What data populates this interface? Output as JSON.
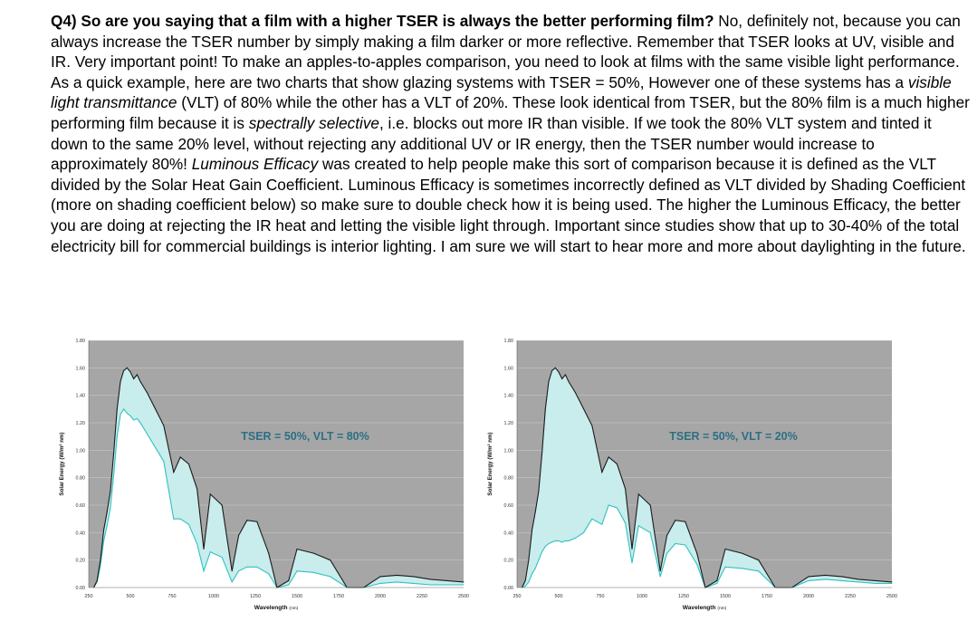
{
  "document": {
    "question": "Q4) So are you saying that a film with a higher TSER is always the better performing film?",
    "s1": "  No, definitely not, because you can always increase the TSER number by simply making a film darker or more reflective.  Remember that TSER looks at UV, visible and IR.  Very important point!  To make an apples-to-apples comparison, you need to look at films with the same visible light performance.  As a quick example, here are two charts that show glazing systems with TSER = 50%, However one of these systems has a ",
    "term_vlt": "visible light transmittance",
    "s2": " (VLT) of 80% while the other has a VLT of 20%.  These look identical from TSER, but the 80% film is a much higher performing film because it is ",
    "term_selective": "spectrally selective",
    "s3": ", i.e. blocks out more IR than visible.  If we took the 80% VLT system and tinted it down to the same 20% level, without rejecting any additional UV or IR energy, then the TSER number would increase to approximately 80%!  ",
    "term_efficacy": "Luminous Efficacy",
    "s4": " was created to help people make this sort of comparison because it is defined as the VLT divided by the Solar Heat Gain Coefficient.  Luminous Efficacy is sometimes incorrectly defined as VLT divided by Shading Coefficient (more on shading coefficient below) so make sure to double check how it is being used.  The higher the Luminous Efficacy, the better you are doing at rejecting the IR heat and letting the visible light through.  Important since studies show that up to 30-40% of the total electricity bill for commercial buildings is interior lighting.  I am sure we will start to hear more and more about daylighting in the future."
  },
  "colors": {
    "plot_bg": "#a6a6a6",
    "transmitted_fill": "#c9ecec",
    "transmitted_line": "#2ec2c2",
    "spectrum_line": "#1a1a1a",
    "annotation": "#2c6f84"
  },
  "chart_data": [
    {
      "type": "area",
      "annotation": "TSER = 50%, VLT = 80%",
      "xlabel": "Wavelength",
      "xlabel_unit": "(nm)",
      "ylabel": "Solar Energy (W/m² nm)",
      "xlim": [
        250,
        2500
      ],
      "ylim": [
        0,
        1.8
      ],
      "xticks": [
        "250",
        "500",
        "750",
        "1000",
        "1250",
        "1500",
        "1750",
        "2000",
        "2250",
        "2500"
      ],
      "yticks": [
        "0.00",
        "0.20",
        "0.40",
        "0.60",
        "0.80",
        "1.00",
        "1.20",
        "1.40",
        "1.60",
        "1.80"
      ],
      "grid": true,
      "legend": "none",
      "x": [
        280,
        300,
        320,
        340,
        360,
        380,
        400,
        420,
        440,
        460,
        480,
        500,
        520,
        540,
        560,
        600,
        650,
        700,
        760,
        800,
        850,
        900,
        940,
        980,
        1050,
        1110,
        1150,
        1200,
        1260,
        1330,
        1380,
        1450,
        1500,
        1600,
        1700,
        1800,
        1900,
        2000,
        2100,
        2200,
        2300,
        2400,
        2500
      ],
      "series": [
        {
          "values": [
            0.0,
            0.05,
            0.2,
            0.42,
            0.55,
            0.7,
            0.98,
            1.3,
            1.5,
            1.58,
            1.6,
            1.57,
            1.52,
            1.55,
            1.5,
            1.42,
            1.3,
            1.18,
            0.84,
            0.95,
            0.9,
            0.72,
            0.28,
            0.68,
            0.6,
            0.12,
            0.38,
            0.49,
            0.48,
            0.25,
            0.0,
            0.05,
            0.28,
            0.25,
            0.2,
            0.0,
            0.0,
            0.08,
            0.09,
            0.08,
            0.06,
            0.05,
            0.04
          ]
        },
        {
          "values": [
            0.0,
            0.04,
            0.16,
            0.34,
            0.45,
            0.58,
            0.82,
            1.1,
            1.26,
            1.3,
            1.27,
            1.25,
            1.22,
            1.23,
            1.2,
            1.12,
            1.02,
            0.92,
            0.5,
            0.5,
            0.46,
            0.32,
            0.12,
            0.26,
            0.22,
            0.04,
            0.12,
            0.15,
            0.15,
            0.1,
            0.0,
            0.02,
            0.12,
            0.11,
            0.08,
            0.0,
            0.0,
            0.03,
            0.04,
            0.03,
            0.02,
            0.02,
            0.02
          ]
        }
      ]
    },
    {
      "type": "area",
      "annotation": "TSER = 50%, VLT = 20%",
      "xlabel": "Wavelength",
      "xlabel_unit": "(nm)",
      "ylabel": "Solar Energy (W/m² nm)",
      "xlim": [
        250,
        2500
      ],
      "ylim": [
        0,
        1.8
      ],
      "xticks": [
        "250",
        "500",
        "750",
        "1000",
        "1250",
        "1500",
        "1750",
        "2000",
        "2250",
        "2500"
      ],
      "yticks": [
        "0.00",
        "0.20",
        "0.40",
        "0.60",
        "0.80",
        "1.00",
        "1.20",
        "1.40",
        "1.60",
        "1.80"
      ],
      "grid": true,
      "legend": "none",
      "x": [
        280,
        300,
        320,
        340,
        360,
        380,
        400,
        420,
        440,
        460,
        480,
        500,
        520,
        540,
        560,
        600,
        650,
        700,
        760,
        800,
        850,
        900,
        940,
        980,
        1050,
        1110,
        1150,
        1200,
        1260,
        1330,
        1380,
        1450,
        1500,
        1600,
        1700,
        1800,
        1900,
        2000,
        2100,
        2200,
        2300,
        2400,
        2500
      ],
      "series": [
        {
          "values": [
            0.0,
            0.05,
            0.2,
            0.42,
            0.55,
            0.7,
            0.98,
            1.3,
            1.5,
            1.58,
            1.6,
            1.57,
            1.52,
            1.55,
            1.5,
            1.42,
            1.3,
            1.18,
            0.84,
            0.95,
            0.9,
            0.72,
            0.28,
            0.68,
            0.6,
            0.12,
            0.38,
            0.49,
            0.48,
            0.25,
            0.0,
            0.05,
            0.28,
            0.25,
            0.2,
            0.0,
            0.0,
            0.08,
            0.09,
            0.08,
            0.06,
            0.05,
            0.04
          ]
        },
        {
          "values": [
            0.0,
            0.01,
            0.04,
            0.1,
            0.14,
            0.2,
            0.26,
            0.3,
            0.32,
            0.33,
            0.34,
            0.34,
            0.33,
            0.34,
            0.34,
            0.36,
            0.4,
            0.5,
            0.46,
            0.6,
            0.58,
            0.47,
            0.18,
            0.45,
            0.4,
            0.08,
            0.25,
            0.32,
            0.31,
            0.17,
            0.0,
            0.03,
            0.15,
            0.14,
            0.12,
            0.0,
            0.0,
            0.05,
            0.06,
            0.05,
            0.04,
            0.03,
            0.03
          ]
        }
      ]
    }
  ]
}
